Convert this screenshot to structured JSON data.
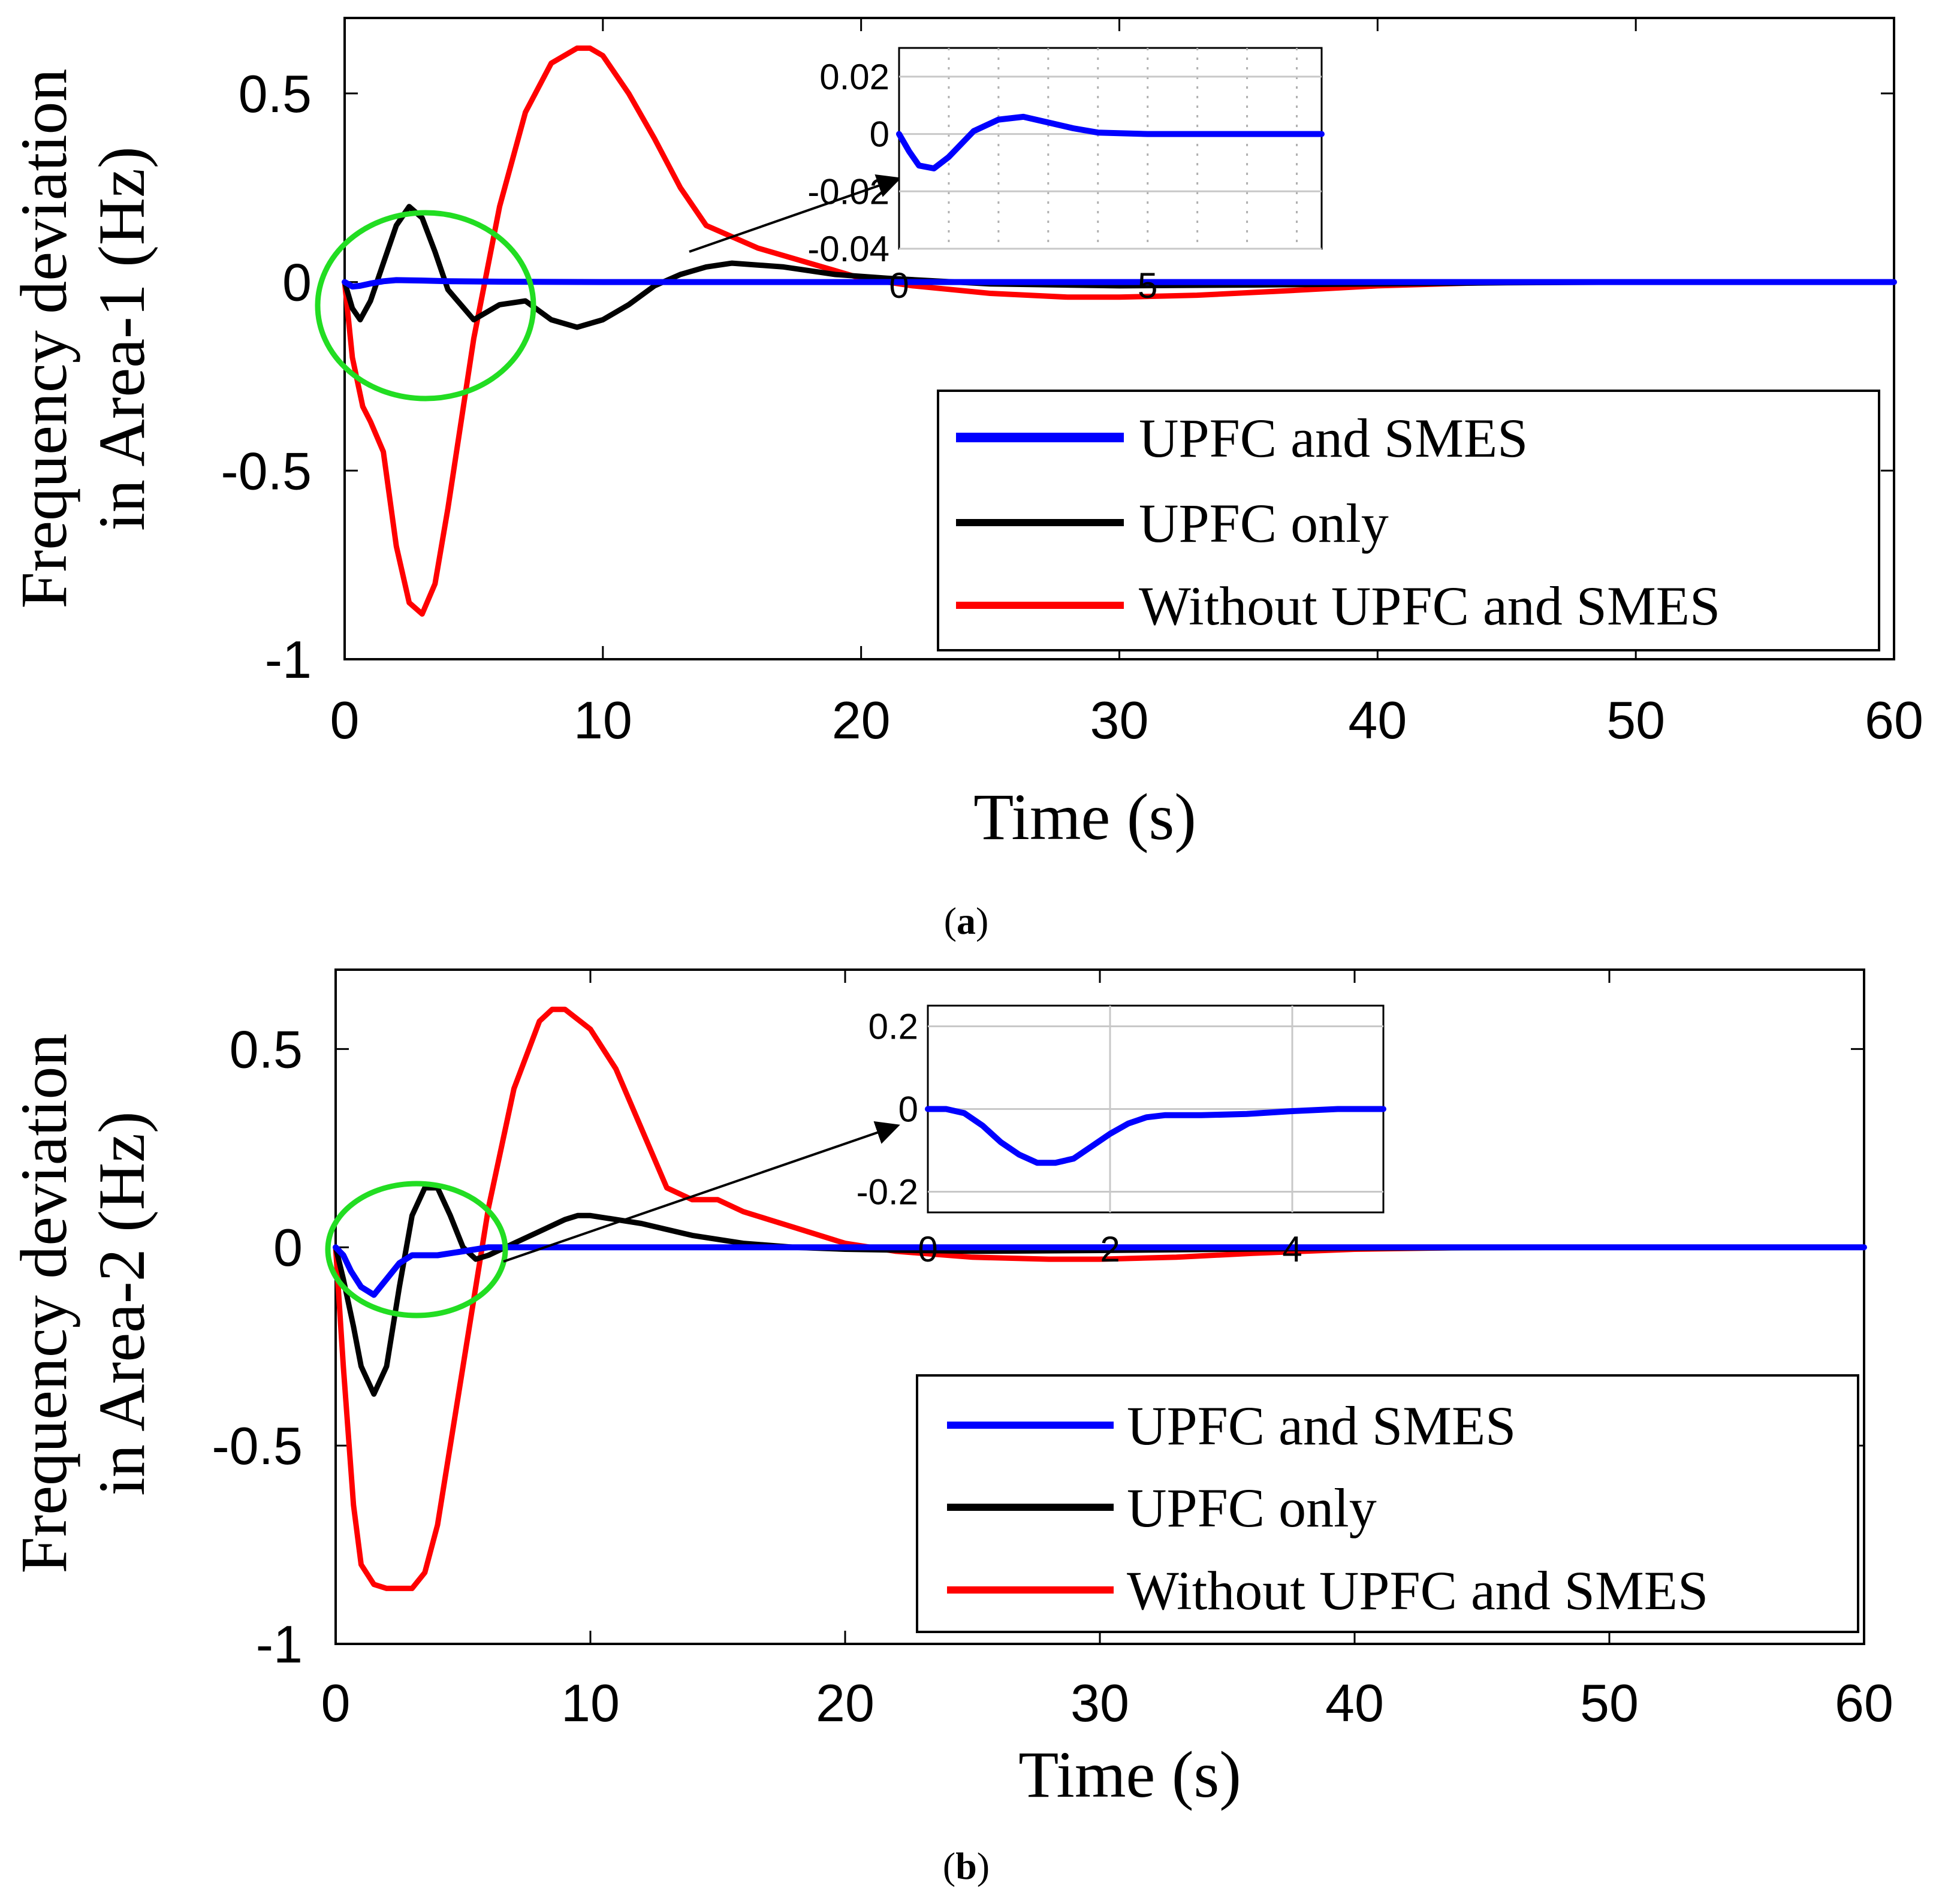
{
  "chart_data": [
    {
      "type": "line",
      "caption": "a",
      "xlabel": "Time (s)",
      "ylabel": [
        "Frequency deviation",
        "in Area-1 (Hz)"
      ],
      "xlim": [
        0,
        60
      ],
      "ylim": [
        -1,
        0.7
      ],
      "xticks": [
        0,
        10,
        20,
        30,
        40,
        50,
        60
      ],
      "yticks": [
        -1,
        -0.5,
        0,
        0.5
      ],
      "xtick_labels": [
        "0",
        "10",
        "20",
        "30",
        "40",
        "50",
        "60"
      ],
      "ytick_labels": [
        "-1",
        "-0.5",
        "0",
        "0.5"
      ],
      "legend_location": "bottom-right",
      "series": [
        {
          "name": "UPFC and SMES",
          "color": "#0000ff",
          "x": [
            0,
            0.3,
            0.6,
            1,
            1.5,
            2,
            3,
            4,
            6,
            10,
            20,
            30,
            40,
            50,
            60
          ],
          "y": [
            0,
            -0.012,
            -0.01,
            -0.004,
            0.002,
            0.005,
            0.004,
            0.002,
            0.001,
            0,
            0,
            0,
            0,
            0,
            0
          ]
        },
        {
          "name": "UPFC only",
          "color": "#000000",
          "x": [
            0,
            0.3,
            0.6,
            1,
            1.5,
            2,
            2.5,
            3,
            3.5,
            4,
            5,
            6,
            7,
            8,
            9,
            10,
            11,
            12,
            13,
            14,
            15,
            17,
            19,
            21,
            25,
            30,
            35,
            40,
            45,
            50,
            55,
            60
          ],
          "y": [
            0,
            -0.07,
            -0.1,
            -0.05,
            0.05,
            0.15,
            0.2,
            0.17,
            0.08,
            -0.02,
            -0.1,
            -0.06,
            -0.05,
            -0.1,
            -0.12,
            -0.1,
            -0.06,
            -0.01,
            0.02,
            0.04,
            0.05,
            0.04,
            0.02,
            0.01,
            -0.005,
            -0.01,
            -0.008,
            -0.005,
            -0.002,
            0,
            0,
            0
          ]
        },
        {
          "name": "Without UPFC and SMES",
          "color": "#ff0000",
          "x": [
            0,
            0.3,
            0.7,
            1,
            1.5,
            2,
            2.5,
            3,
            3.5,
            4,
            5,
            6,
            7,
            8,
            9,
            9.5,
            10,
            11,
            12,
            13,
            14,
            16,
            18,
            20,
            22,
            25,
            28,
            30,
            33,
            36,
            40,
            45,
            50,
            55,
            60
          ],
          "y": [
            0,
            -0.2,
            -0.33,
            -0.37,
            -0.45,
            -0.7,
            -0.85,
            -0.88,
            -0.8,
            -0.6,
            -0.15,
            0.2,
            0.45,
            0.58,
            0.62,
            0.62,
            0.6,
            0.5,
            0.38,
            0.25,
            0.15,
            0.09,
            0.05,
            0.01,
            -0.01,
            -0.03,
            -0.04,
            -0.04,
            -0.035,
            -0.025,
            -0.01,
            0,
            0,
            0,
            0
          ]
        }
      ],
      "inset": {
        "series_name": "UPFC and SMES",
        "color": "#0000ff",
        "xlim": [
          0,
          8.5
        ],
        "ylim": [
          -0.04,
          0.03
        ],
        "xticks": [
          0,
          5
        ],
        "xtick_labels": [
          "0",
          "5"
        ],
        "yticks": [
          0.02,
          0,
          -0.02,
          -0.04
        ],
        "ytick_labels": [
          "0.02",
          "0",
          "-0.02",
          "-0.04"
        ],
        "x": [
          0,
          0.2,
          0.4,
          0.7,
          1,
          1.5,
          2,
          2.5,
          3,
          3.5,
          4,
          5,
          6,
          7,
          8,
          8.5
        ],
        "y": [
          0,
          -0.006,
          -0.011,
          -0.012,
          -0.008,
          0.001,
          0.005,
          0.006,
          0.004,
          0.002,
          0.0005,
          0,
          0,
          0,
          0,
          0
        ]
      }
    },
    {
      "type": "line",
      "caption": "b",
      "xlabel": "Time (s)",
      "ylabel": [
        "Frequency deviation",
        "in Area-2 (Hz)"
      ],
      "xlim": [
        0,
        60
      ],
      "ylim": [
        -1,
        0.7
      ],
      "xticks": [
        0,
        10,
        20,
        30,
        40,
        50,
        60
      ],
      "yticks": [
        -1,
        -0.5,
        0,
        0.5
      ],
      "xtick_labels": [
        "0",
        "10",
        "20",
        "30",
        "40",
        "50",
        "60"
      ],
      "ytick_labels": [
        "-1",
        "-0.5",
        "0",
        "0.5"
      ],
      "legend_location": "bottom-right",
      "series": [
        {
          "name": "UPFC and SMES",
          "color": "#0000ff",
          "x": [
            0,
            0.3,
            0.6,
            1,
            1.5,
            2,
            2.5,
            3,
            4,
            5,
            6,
            8,
            10,
            20,
            30,
            40,
            50,
            60
          ],
          "y": [
            0,
            -0.02,
            -0.06,
            -0.1,
            -0.12,
            -0.08,
            -0.04,
            -0.02,
            -0.02,
            -0.01,
            0,
            0,
            0,
            0,
            0,
            0,
            0,
            0
          ]
        },
        {
          "name": "UPFC only",
          "color": "#000000",
          "x": [
            0,
            0.3,
            0.7,
            1,
            1.5,
            2,
            2.5,
            3,
            3.5,
            4,
            4.5,
            5,
            5.5,
            6,
            7,
            8,
            9,
            9.5,
            10,
            12,
            14,
            16,
            18,
            20,
            25,
            30,
            35,
            40,
            50,
            60
          ],
          "y": [
            0,
            -0.08,
            -0.2,
            -0.3,
            -0.37,
            -0.3,
            -0.1,
            0.08,
            0.15,
            0.15,
            0.08,
            0,
            -0.03,
            -0.02,
            0.01,
            0.04,
            0.07,
            0.08,
            0.08,
            0.06,
            0.03,
            0.01,
            0,
            -0.005,
            -0.01,
            -0.008,
            -0.005,
            -0.002,
            0,
            0
          ]
        },
        {
          "name": "Without UPFC and SMES",
          "color": "#ff0000",
          "x": [
            0,
            0.3,
            0.7,
            1,
            1.5,
            2,
            2.5,
            3,
            3.5,
            4,
            5,
            6,
            7,
            8,
            8.5,
            9,
            10,
            11,
            12,
            13,
            14,
            15,
            16,
            18,
            20,
            22,
            25,
            28,
            30,
            33,
            36,
            40,
            45,
            50,
            60
          ],
          "y": [
            0,
            -0.3,
            -0.65,
            -0.8,
            -0.85,
            -0.86,
            -0.86,
            -0.86,
            -0.82,
            -0.7,
            -0.3,
            0.1,
            0.4,
            0.57,
            0.6,
            0.6,
            0.55,
            0.45,
            0.3,
            0.15,
            0.12,
            0.12,
            0.09,
            0.05,
            0.01,
            -0.01,
            -0.025,
            -0.03,
            -0.03,
            -0.025,
            -0.015,
            -0.005,
            0,
            0,
            0
          ]
        }
      ],
      "inset": {
        "series_name": "UPFC and SMES",
        "color": "#0000ff",
        "xlim": [
          0,
          5
        ],
        "ylim": [
          -0.25,
          0.25
        ],
        "xticks": [
          0,
          2,
          4
        ],
        "xtick_labels": [
          "0",
          "2",
          "4"
        ],
        "yticks": [
          0.2,
          0,
          -0.2
        ],
        "ytick_labels": [
          "0.2",
          "0",
          "-0.2"
        ],
        "x": [
          0,
          0.2,
          0.4,
          0.6,
          0.8,
          1,
          1.2,
          1.4,
          1.6,
          1.8,
          2,
          2.2,
          2.4,
          2.6,
          3,
          3.5,
          4,
          4.5,
          5
        ],
        "y": [
          0,
          0,
          -0.01,
          -0.04,
          -0.08,
          -0.11,
          -0.13,
          -0.13,
          -0.12,
          -0.09,
          -0.06,
          -0.035,
          -0.02,
          -0.015,
          -0.015,
          -0.012,
          -0.005,
          0,
          0
        ]
      }
    }
  ]
}
